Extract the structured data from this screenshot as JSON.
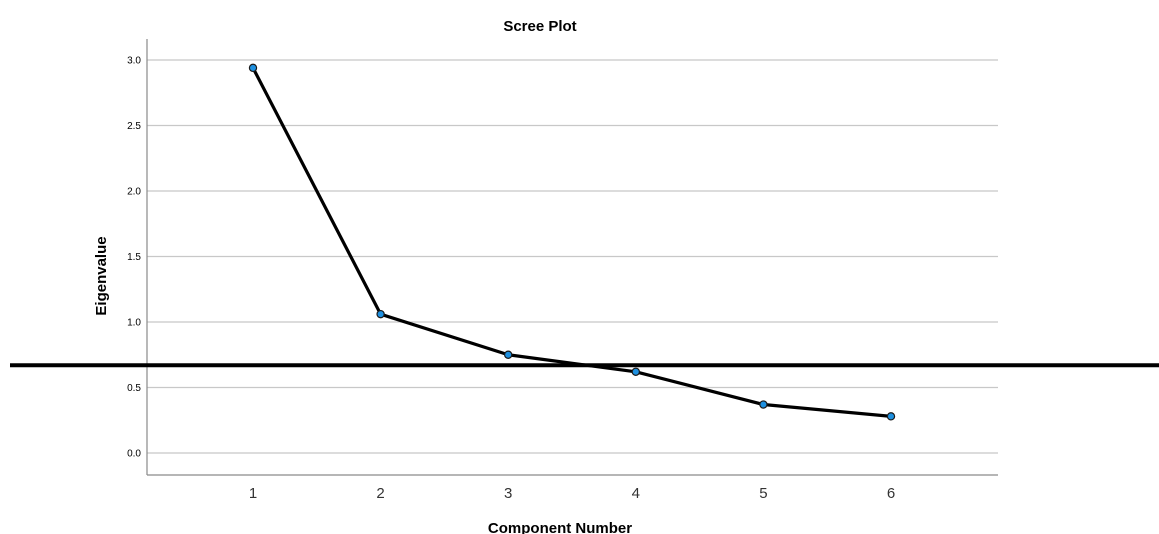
{
  "chart_data": {
    "type": "line",
    "title": "Scree Plot",
    "xlabel": "Component Number",
    "ylabel": "Eigenvalue",
    "x": [
      1,
      2,
      3,
      4,
      5,
      6
    ],
    "x_tick_labels": [
      "1",
      "2",
      "3",
      "4",
      "5",
      "6"
    ],
    "series": [
      {
        "values": [
          2.94,
          1.06,
          0.75,
          0.62,
          0.37,
          0.28
        ]
      }
    ],
    "y_ticks": [
      0.0,
      0.5,
      1.0,
      1.5,
      2.0,
      2.5,
      3.0
    ],
    "y_tick_labels": [
      "0.0",
      "0.5",
      "1.0",
      "1.5",
      "2.0",
      "2.5",
      "3.0"
    ],
    "ylim": [
      -0.1,
      3.18
    ],
    "xlim": [
      0.2,
      6.85
    ],
    "grid": "horizontal",
    "reference_line_value": 0.67,
    "colors": {
      "marker_fill": "#1e90e0",
      "marker_stroke": "#1a1a1a",
      "line": "#000000",
      "grid": "#c8c8c8",
      "axis": "#8a8a8a",
      "reference_line": "#000000"
    }
  }
}
